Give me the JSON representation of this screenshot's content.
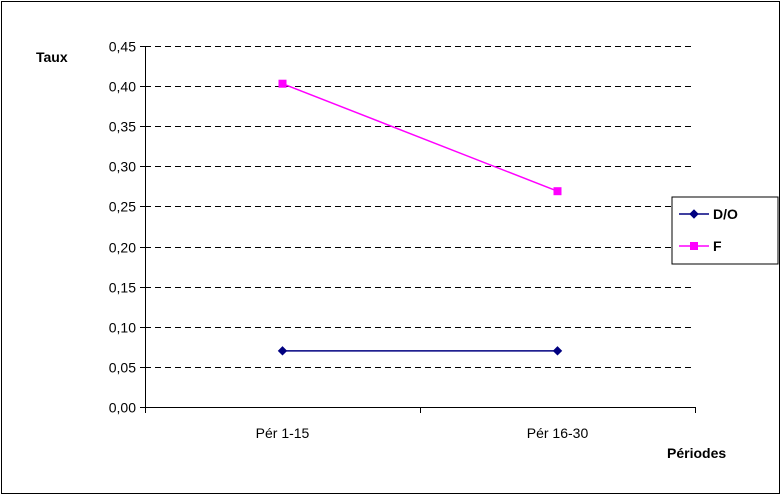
{
  "chart_data": {
    "type": "line",
    "categories": [
      "Pér 1-15",
      "Pér 16-30"
    ],
    "series": [
      {
        "name": "D/O",
        "values": [
          0.07,
          0.07
        ],
        "color": "#000080",
        "marker": "diamond"
      },
      {
        "name": "F",
        "values": [
          0.403,
          0.269
        ],
        "color": "#ff00ff",
        "marker": "square"
      }
    ],
    "ylabel": "Taux",
    "xlabel": "Périodes",
    "ylim": [
      0,
      0.45
    ],
    "yticks": [
      "0,00",
      "0,05",
      "0,10",
      "0,15",
      "0,20",
      "0,25",
      "0,30",
      "0,35",
      "0,40",
      "0,45"
    ],
    "grid": true,
    "legend": "right"
  }
}
